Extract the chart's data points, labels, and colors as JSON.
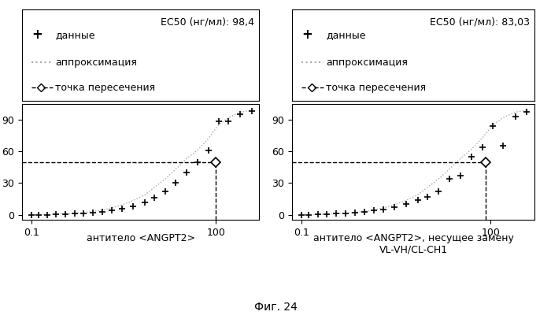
{
  "panel1": {
    "ec50_label": "EC50 (нг/мл): 98,4",
    "data_x": [
      0.1,
      0.13,
      0.18,
      0.25,
      0.35,
      0.5,
      0.7,
      1.0,
      1.4,
      2.0,
      3.0,
      4.5,
      7.0,
      10,
      15,
      22,
      33,
      50,
      75,
      110,
      160,
      250,
      380
    ],
    "data_y": [
      0,
      0,
      0,
      0.5,
      0.5,
      1,
      1,
      2,
      3,
      4,
      6,
      8,
      12,
      16,
      22,
      30,
      40,
      50,
      61,
      88,
      88,
      95,
      98
    ],
    "fit_x": [
      0.1,
      0.13,
      0.18,
      0.25,
      0.35,
      0.5,
      0.7,
      1.0,
      1.4,
      2.0,
      3.0,
      4.5,
      7.0,
      10,
      15,
      22,
      33,
      50,
      75,
      110,
      160,
      250,
      380
    ],
    "fit_y": [
      0.2,
      0.3,
      0.5,
      0.7,
      1.0,
      1.5,
      2.2,
      3.2,
      4.5,
      6.5,
      9.5,
      13.5,
      19,
      26,
      34,
      43,
      53,
      61,
      72,
      85,
      92,
      97,
      99
    ],
    "ec50_x": 98.4,
    "ec50_y": 50,
    "hline_y": 50,
    "xlabel_ticks": [
      0.1,
      100
    ],
    "yticks": [
      0,
      30,
      60,
      90
    ],
    "xlim": [
      0.07,
      500
    ],
    "ylim": [
      -5,
      105
    ],
    "label_below": "антитело <ANGPT2>"
  },
  "panel2": {
    "ec50_label": "EC50 (нг/мл): 83,03",
    "data_x": [
      0.1,
      0.13,
      0.18,
      0.25,
      0.35,
      0.5,
      0.7,
      1.0,
      1.4,
      2.0,
      3.0,
      4.5,
      7.0,
      10,
      15,
      22,
      33,
      50,
      75,
      110,
      160,
      250,
      380
    ],
    "data_y": [
      0,
      0,
      0.5,
      0.5,
      1,
      1,
      2,
      3,
      4,
      5,
      7,
      10,
      14,
      17,
      22,
      34,
      37,
      55,
      64,
      84,
      65,
      93,
      97
    ],
    "fit_x": [
      0.1,
      0.13,
      0.18,
      0.25,
      0.35,
      0.5,
      0.7,
      1.0,
      1.4,
      2.0,
      3.0,
      4.5,
      7.0,
      10,
      15,
      22,
      33,
      50,
      75,
      110,
      160,
      250,
      380
    ],
    "fit_y": [
      0.2,
      0.3,
      0.5,
      0.7,
      1.0,
      1.5,
      2.2,
      3.2,
      4.5,
      6.5,
      9.5,
      13.5,
      19,
      26,
      34,
      43,
      53,
      62,
      73,
      85,
      92,
      97,
      99
    ],
    "ec50_x": 83.03,
    "ec50_y": 50,
    "hline_y": 50,
    "xlabel_ticks": [
      0.1,
      100
    ],
    "yticks": [
      0,
      30,
      60,
      90
    ],
    "xlim": [
      0.07,
      500
    ],
    "ylim": [
      -5,
      105
    ],
    "label_below": "антитело <ANGPT2>, несущее замену\nVL-VH/CL-CH1"
  },
  "legend_labels": [
    "данные",
    "аппроксимация",
    "точка пересечения"
  ],
  "fig_label": "Фиг. 24",
  "background_color": "#ffffff",
  "data_color": "#000000",
  "fit_color": "#aaaaaa",
  "dashed_color": "#000000",
  "legend_fit_color": "#aaaaaa"
}
